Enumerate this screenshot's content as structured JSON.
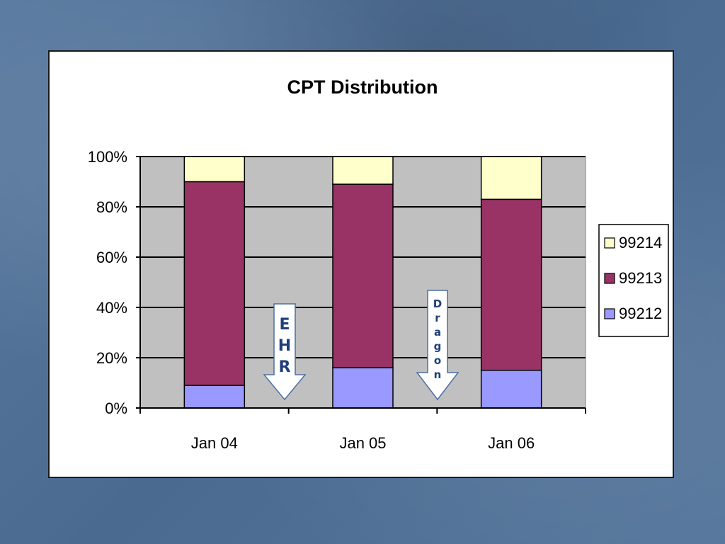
{
  "chart_data": {
    "type": "bar",
    "stacked": true,
    "percent": true,
    "title": "CPT Distribution",
    "xlabel": "",
    "ylabel": "",
    "ylim": [
      0,
      100
    ],
    "yticks": [
      "0%",
      "20%",
      "40%",
      "60%",
      "80%",
      "100%"
    ],
    "categories": [
      "Jan 04",
      "Jan 05",
      "Jan 06"
    ],
    "series": [
      {
        "name": "99212",
        "values": [
          9,
          16,
          15
        ],
        "color": "#9999ff"
      },
      {
        "name": "99213",
        "values": [
          81,
          73,
          68
        ],
        "color": "#993366"
      },
      {
        "name": "99214",
        "values": [
          10,
          11,
          17
        ],
        "color": "#ffffcc"
      }
    ],
    "grid": true,
    "plot_background": "#c0c0c0",
    "legend": {
      "position": "right",
      "order": [
        "99214",
        "99213",
        "99212"
      ]
    },
    "annotations": [
      {
        "text": "EHR",
        "between": [
          "Jan 04",
          "Jan 05"
        ],
        "shape": "down-arrow"
      },
      {
        "text": "Dragon",
        "between": [
          "Jan 05",
          "Jan 06"
        ],
        "shape": "down-arrow"
      }
    ]
  }
}
